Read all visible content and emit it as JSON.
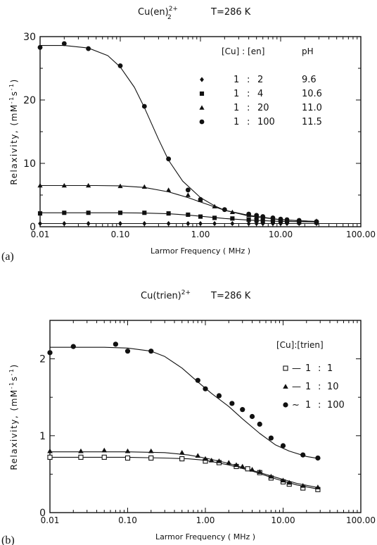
{
  "chart_data": [
    {
      "type": "scatter",
      "title": "Cu(en)",
      "title_super": "2+",
      "title_sub": "2",
      "temperature": "T=286 K",
      "panel_label": "(a)",
      "xlabel": "Larmor Frequency ( MHz )",
      "ylabel": "Relaxivity, (mM",
      "ylabel_sup1": "-1",
      "ylabel_mid": "s",
      "ylabel_sup2": "-1",
      "ylabel_end": ")",
      "x_scale": "log",
      "xlim": [
        0.01,
        100
      ],
      "ylim": [
        0,
        30
      ],
      "x_ticks": [
        "0.01",
        "0.10",
        "1.00",
        "10.00",
        "100.00"
      ],
      "y_ticks": [
        "0",
        "10",
        "20",
        "30"
      ],
      "legend": {
        "header_ratio": "[Cu] : [en]",
        "header_ph": "pH",
        "placement": "top-right"
      },
      "series": [
        {
          "marker": "diamond",
          "ratio_left": "1",
          "ratio_sep": ":",
          "ratio_right": "2",
          "ph": "9.6",
          "x": [
            0.01,
            0.02,
            0.04,
            0.1,
            0.2,
            0.4,
            0.7,
            1.0,
            1.5,
            2.5,
            4,
            5,
            6,
            8,
            10,
            12,
            17,
            28
          ],
          "y": [
            0.5,
            0.5,
            0.5,
            0.5,
            0.5,
            0.5,
            0.5,
            0.5,
            0.5,
            0.5,
            0.5,
            0.5,
            0.5,
            0.5,
            0.5,
            0.5,
            0.5,
            0.5
          ],
          "curve_x": [
            0.01,
            100
          ],
          "curve_y": [
            0.5,
            0.5
          ]
        },
        {
          "marker": "square",
          "ratio_left": "1",
          "ratio_sep": ":",
          "ratio_right": "4",
          "ph": "10.6",
          "x": [
            0.01,
            0.02,
            0.04,
            0.1,
            0.2,
            0.4,
            0.7,
            1.0,
            1.5,
            2.5,
            4,
            5,
            6,
            8,
            10,
            12,
            17,
            28
          ],
          "y": [
            2.1,
            2.2,
            2.2,
            2.2,
            2.2,
            2.1,
            1.9,
            1.6,
            1.4,
            1.3,
            1.1,
            1.0,
            0.9,
            0.8,
            0.8,
            0.8,
            0.7,
            0.7
          ],
          "curve_x": [
            0.01,
            0.1,
            0.2,
            0.4,
            0.7,
            1.0,
            2,
            4,
            10,
            30
          ],
          "curve_y": [
            2.2,
            2.2,
            2.15,
            2.05,
            1.85,
            1.65,
            1.3,
            1.05,
            0.85,
            0.75
          ]
        },
        {
          "marker": "triangle",
          "ratio_left": "1",
          "ratio_sep": ":",
          "ratio_right": "20",
          "ph": "11.0",
          "x": [
            0.01,
            0.02,
            0.04,
            0.1,
            0.2,
            0.4,
            0.7,
            1.0,
            1.5,
            2.5,
            4,
            5,
            6,
            8,
            10,
            12,
            17,
            28
          ],
          "y": [
            6.5,
            6.5,
            6.5,
            6.4,
            6.3,
            5.8,
            5.0,
            4.2,
            3.2,
            2.3,
            1.8,
            1.6,
            1.5,
            1.3,
            1.2,
            1.1,
            1.0,
            0.9
          ],
          "curve_x": [
            0.01,
            0.05,
            0.1,
            0.2,
            0.4,
            0.7,
            1.0,
            2,
            4,
            10,
            30
          ],
          "curve_y": [
            6.5,
            6.5,
            6.45,
            6.2,
            5.5,
            4.6,
            3.9,
            2.6,
            1.8,
            1.1,
            0.8
          ]
        },
        {
          "marker": "circle",
          "ratio_left": "1",
          "ratio_sep": ":",
          "ratio_right": "100",
          "ph": "11.5",
          "x": [
            0.01,
            0.02,
            0.04,
            0.1,
            0.2,
            0.4,
            0.7,
            1.0,
            2,
            4,
            5,
            6,
            8,
            10,
            12,
            17,
            28
          ],
          "y": [
            28.3,
            28.9,
            28.1,
            25.4,
            19.0,
            10.7,
            5.8,
            4.3,
            2.7,
            2.0,
            1.8,
            1.6,
            1.4,
            1.2,
            1.1,
            1.0,
            0.8
          ],
          "curve_x": [
            0.01,
            0.02,
            0.04,
            0.07,
            0.1,
            0.15,
            0.2,
            0.3,
            0.4,
            0.6,
            1.0,
            1.5,
            2,
            4,
            10,
            30
          ],
          "curve_y": [
            28.6,
            28.6,
            28.2,
            27.0,
            25.2,
            22.0,
            18.8,
            13.8,
            10.5,
            7.2,
            4.6,
            3.3,
            2.6,
            1.7,
            1.1,
            0.8
          ]
        }
      ]
    },
    {
      "type": "scatter",
      "title": "Cu(trien)",
      "title_super": "2+",
      "temperature": "T=286 K",
      "panel_label": "(b)",
      "xlabel": "Larmor Frequency ( MHz )",
      "ylabel": "Relaxivity, (mM",
      "ylabel_sup1": "-1",
      "ylabel_mid": "s",
      "ylabel_sup2": "-1",
      "ylabel_end": ")",
      "x_scale": "log",
      "xlim": [
        0.01,
        100
      ],
      "ylim": [
        0,
        2.5
      ],
      "x_ticks": [
        "0.01",
        "0.10",
        "1.00",
        "10.00",
        "100.00"
      ],
      "y_ticks": [
        "0",
        "1",
        "2"
      ],
      "legend": {
        "header_ratio": "[Cu]:[trien]",
        "placement": "top-right"
      },
      "series": [
        {
          "marker": "open-square",
          "legend_dash": "—",
          "ratio_left": "1",
          "ratio_sep": ":",
          "ratio_right": "1",
          "x": [
            0.01,
            0.025,
            0.05,
            0.1,
            0.2,
            0.5,
            1.0,
            1.5,
            2.5,
            3.5,
            5,
            7,
            10,
            12,
            18,
            28
          ],
          "y": [
            0.72,
            0.72,
            0.72,
            0.71,
            0.71,
            0.7,
            0.67,
            0.65,
            0.6,
            0.57,
            0.52,
            0.45,
            0.4,
            0.37,
            0.32,
            0.3
          ],
          "curve_x": [
            0.01,
            0.1,
            0.3,
            0.6,
            1.0,
            2,
            4,
            8,
            15,
            30
          ],
          "curve_y": [
            0.72,
            0.72,
            0.71,
            0.7,
            0.68,
            0.62,
            0.54,
            0.44,
            0.36,
            0.3
          ]
        },
        {
          "marker": "triangle",
          "legend_dash": "—",
          "ratio_left": "1",
          "ratio_sep": ":",
          "ratio_right": "10",
          "x": [
            0.01,
            0.025,
            0.05,
            0.1,
            0.2,
            0.5,
            0.8,
            1.0,
            1.2,
            1.5,
            2,
            2.5,
            3,
            4,
            5,
            7,
            10,
            12,
            18,
            28
          ],
          "y": [
            0.8,
            0.8,
            0.81,
            0.8,
            0.8,
            0.78,
            0.74,
            0.7,
            0.68,
            0.67,
            0.65,
            0.62,
            0.6,
            0.56,
            0.53,
            0.47,
            0.42,
            0.39,
            0.35,
            0.33
          ],
          "curve_x": [
            0.01,
            0.1,
            0.3,
            0.6,
            1.0,
            2,
            4,
            8,
            15,
            30
          ],
          "curve_y": [
            0.79,
            0.79,
            0.78,
            0.75,
            0.71,
            0.64,
            0.55,
            0.46,
            0.38,
            0.32
          ]
        },
        {
          "marker": "circle",
          "legend_dash": "~",
          "ratio_left": "1",
          "ratio_sep": ":",
          "ratio_right": "100",
          "x": [
            0.01,
            0.02,
            0.07,
            0.1,
            0.2,
            0.8,
            1.0,
            1.5,
            2.2,
            3,
            4,
            5,
            7,
            10,
            18,
            28
          ],
          "y": [
            2.08,
            2.16,
            2.19,
            2.1,
            2.1,
            1.72,
            1.61,
            1.52,
            1.42,
            1.34,
            1.25,
            1.15,
            0.97,
            0.87,
            0.75,
            0.71
          ],
          "curve_x": [
            0.01,
            0.05,
            0.1,
            0.2,
            0.3,
            0.5,
            0.8,
            1.2,
            2,
            3,
            5,
            8,
            12,
            20,
            30
          ],
          "curve_y": [
            2.15,
            2.15,
            2.14,
            2.1,
            2.03,
            1.88,
            1.7,
            1.55,
            1.38,
            1.22,
            1.03,
            0.88,
            0.8,
            0.73,
            0.7
          ]
        }
      ]
    }
  ]
}
